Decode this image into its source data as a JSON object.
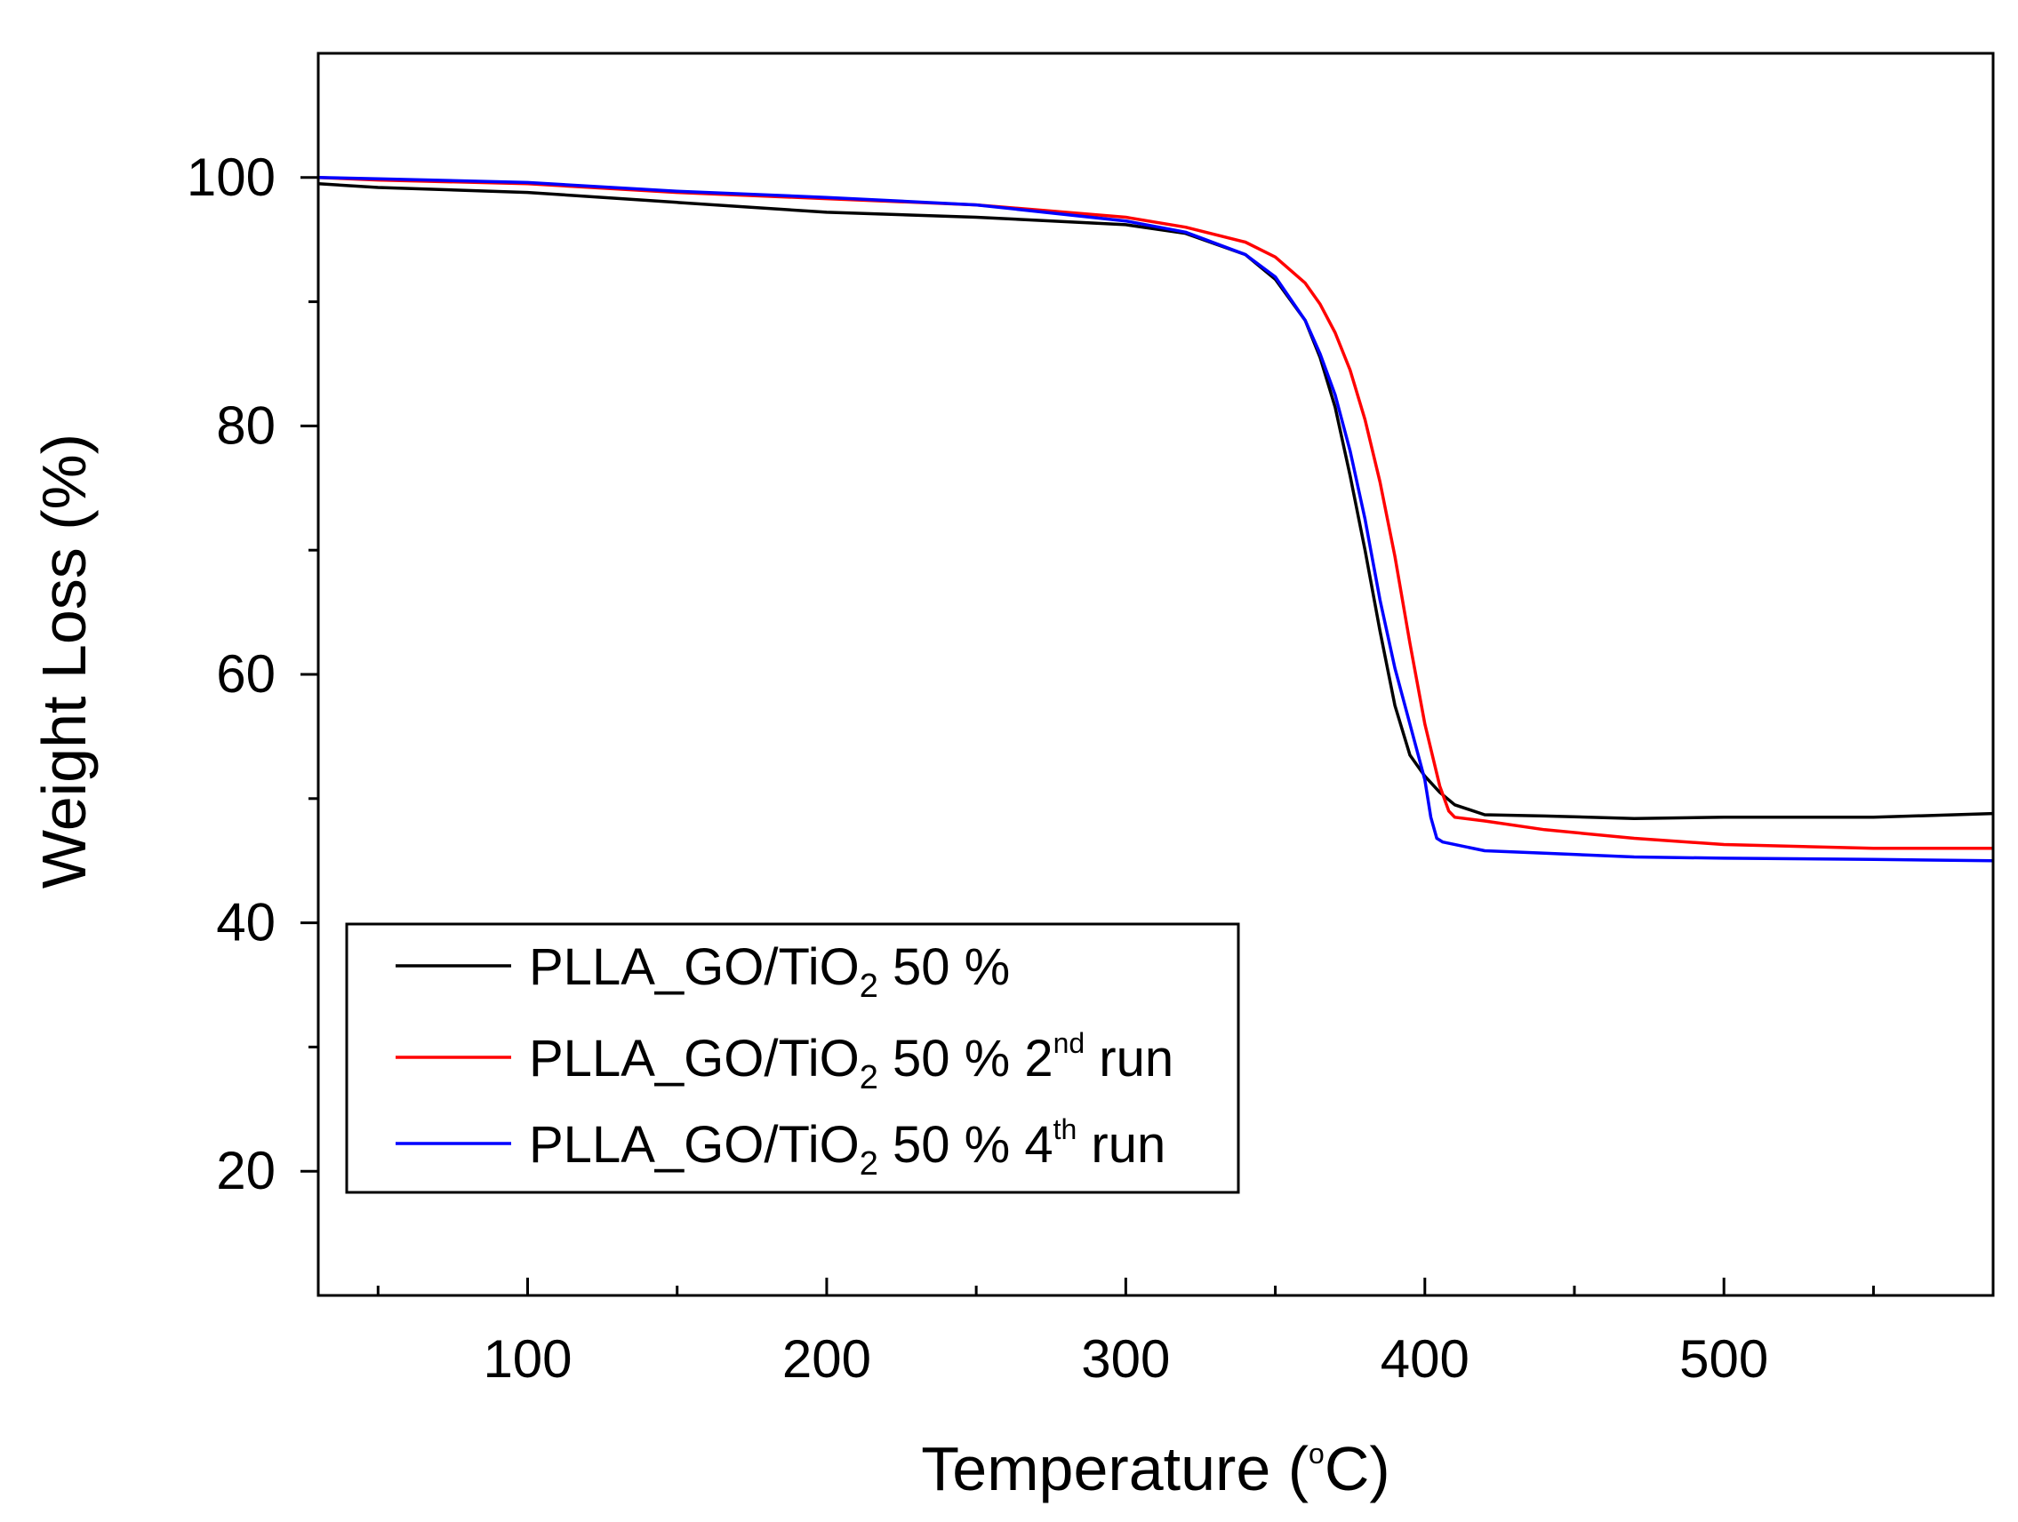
{
  "chart_data": {
    "type": "line",
    "title": "",
    "xlabel": "Temperature (°C)",
    "xlabel_parts": {
      "prefix": "Temperature (",
      "sup": "o",
      "suffix": "C)"
    },
    "ylabel": "Weight Loss  (%)",
    "xlim": [
      30,
      590
    ],
    "ylim": [
      10,
      110
    ],
    "x_ticks": [
      100,
      200,
      300,
      400,
      500
    ],
    "x_tick_labels": [
      "100",
      "200",
      "300",
      "400",
      "500"
    ],
    "y_ticks": [
      20,
      40,
      60,
      80,
      100
    ],
    "y_tick_labels": [
      "20",
      "40",
      "60",
      "80",
      "100"
    ],
    "grid": false,
    "legend_position": "bottom-left",
    "series": [
      {
        "name": "PLLA_GO/TiO2 50 %",
        "legend": {
          "main": "PLLA_GO/TiO",
          "sub": "2",
          "after": " 50 %",
          "sup": "",
          "tail": ""
        },
        "color": "#000000",
        "x": [
          30,
          50,
          100,
          150,
          200,
          250,
          300,
          320,
          340,
          350,
          360,
          365,
          370,
          375,
          380,
          385,
          390,
          395,
          400,
          405,
          410,
          420,
          440,
          470,
          500,
          550,
          590
        ],
        "y": [
          99.5,
          99.2,
          98.8,
          98.0,
          97.2,
          96.8,
          96.2,
          95.5,
          93.8,
          91.8,
          88.5,
          85.5,
          81.5,
          76.0,
          70.0,
          63.5,
          57.5,
          53.5,
          51.8,
          50.5,
          49.5,
          48.7,
          48.6,
          48.4,
          48.5,
          48.5,
          48.8
        ]
      },
      {
        "name": "PLLA_GO/TiO2 50 % 2nd run",
        "legend": {
          "main": "PLLA_GO/TiO",
          "sub": "2",
          "after": " 50 % 2",
          "sup": "nd",
          "tail": " run"
        },
        "color": "#ff0000",
        "x": [
          30,
          50,
          100,
          150,
          200,
          250,
          300,
          320,
          340,
          350,
          360,
          365,
          370,
          375,
          380,
          385,
          390,
          395,
          400,
          405,
          408,
          410,
          420,
          440,
          470,
          500,
          550,
          590
        ],
        "y": [
          100.0,
          99.8,
          99.5,
          98.8,
          98.3,
          97.8,
          96.8,
          96.0,
          94.8,
          93.6,
          91.5,
          89.8,
          87.5,
          84.5,
          80.5,
          75.5,
          69.5,
          62.5,
          56.0,
          51.0,
          49.0,
          48.5,
          48.2,
          47.5,
          46.8,
          46.3,
          46.0,
          46.0
        ]
      },
      {
        "name": "PLLA_GO/TiO2 50 % 4th run",
        "legend": {
          "main": "PLLA_GO/TiO",
          "sub": "2",
          "after": " 50 % 4",
          "sup": "th",
          "tail": " run"
        },
        "color": "#0000ff",
        "x": [
          30,
          50,
          100,
          150,
          200,
          250,
          300,
          320,
          340,
          350,
          360,
          365,
          370,
          375,
          380,
          385,
          390,
          395,
          400,
          402,
          404,
          406,
          420,
          440,
          470,
          500,
          550,
          590
        ],
        "y": [
          100.0,
          99.9,
          99.6,
          98.9,
          98.4,
          97.8,
          96.5,
          95.6,
          93.8,
          92.0,
          88.5,
          85.8,
          82.5,
          78.0,
          72.5,
          66.0,
          60.5,
          56.0,
          51.5,
          48.5,
          46.8,
          46.5,
          45.8,
          45.6,
          45.3,
          45.2,
          45.1,
          45.0
        ]
      }
    ]
  }
}
